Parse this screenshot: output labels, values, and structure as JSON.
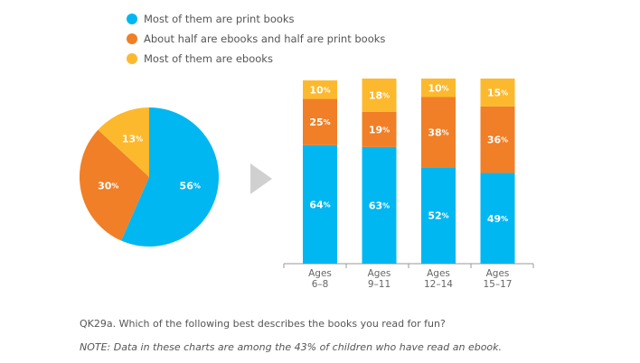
{
  "colors": {
    "print": "#00B7F1",
    "half": "#F07F27",
    "ebooks": "#FDB92D",
    "arrow": "#D0D0D0",
    "axis": "#999999"
  },
  "legend": [
    {
      "label": "Most of them are print books",
      "color": "#00B7F1"
    },
    {
      "label": "About half are ebooks and half are print books",
      "color": "#F07F27"
    },
    {
      "label": "Most of them are ebooks",
      "color": "#FDB92D"
    }
  ],
  "chart_data": [
    {
      "type": "pie",
      "title": "",
      "slices": [
        {
          "label": "56%",
          "value": 56,
          "color": "#00B7F1"
        },
        {
          "label": "30%",
          "value": 30,
          "color": "#F07F27"
        },
        {
          "label": "13%",
          "value": 13,
          "color": "#FDB92D"
        }
      ]
    },
    {
      "type": "bar",
      "stacked": true,
      "title": "",
      "categories": [
        [
          "Ages",
          "6–8"
        ],
        [
          "Ages",
          "9–11"
        ],
        [
          "Ages",
          "12–14"
        ],
        [
          "Ages",
          "15–17"
        ]
      ],
      "series": [
        {
          "name": "Most of them are print books",
          "values": [
            64,
            63,
            52,
            49
          ],
          "labels": [
            "64%",
            "63%",
            "52%",
            "49%"
          ],
          "color": "#00B7F1"
        },
        {
          "name": "About half are ebooks and half are print books",
          "values": [
            25,
            19,
            38,
            36
          ],
          "labels": [
            "25%",
            "19%",
            "38%",
            "36%"
          ],
          "color": "#F07F27"
        },
        {
          "name": "Most of them are ebooks",
          "values": [
            10,
            18,
            10,
            15
          ],
          "labels": [
            "10%",
            "18%",
            "10%",
            "15%"
          ],
          "color": "#FDB92D"
        }
      ],
      "ylim": [
        0,
        100
      ],
      "grid": false
    }
  ],
  "question": "QK29a. Which of the following best describes the books you read for fun?",
  "note": "NOTE: Data in these charts are among the 43% of children who have read an ebook."
}
